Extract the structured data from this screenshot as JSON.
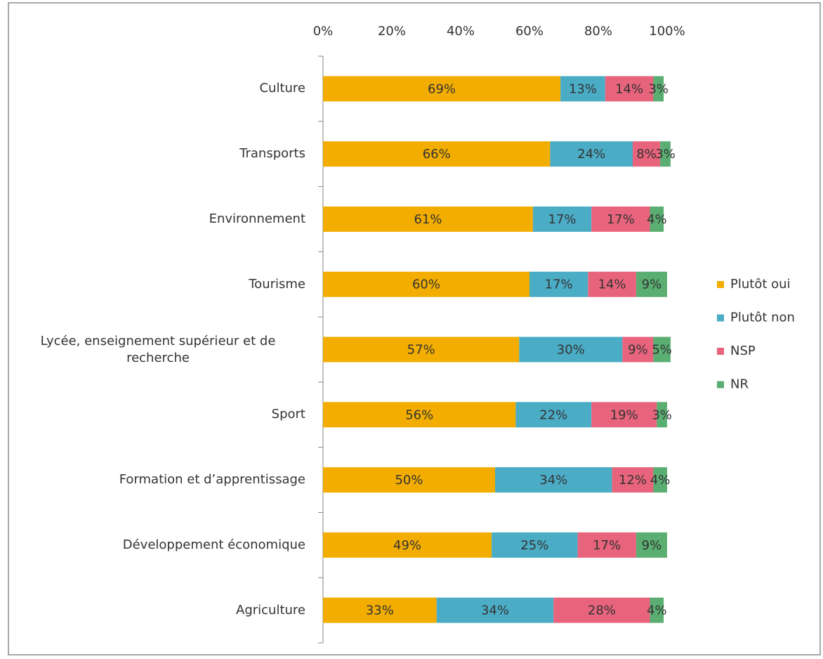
{
  "chart_data": {
    "type": "bar",
    "orientation": "horizontal",
    "stacked": true,
    "categories": [
      "Culture",
      "Transports",
      "Environnement",
      "Tourisme",
      "Lycée, enseignement supérieur et de recherche",
      "Sport",
      "Formation et d’apprentissage",
      "Développement économique",
      "Agriculture"
    ],
    "series": [
      {
        "name": "Plutôt oui",
        "color": "#f2ad00",
        "values": [
          69,
          66,
          61,
          60,
          57,
          56,
          50,
          49,
          33
        ],
        "value_labels": [
          "69%",
          "66%",
          "61%",
          "60%",
          "57%",
          "56%",
          "50%",
          "49%",
          "33%"
        ]
      },
      {
        "name": "Plutôt non",
        "color": "#4bacc6",
        "values": [
          13,
          24,
          17,
          17,
          30,
          22,
          34,
          25,
          34
        ],
        "value_labels": [
          "13%",
          "24%",
          "17%",
          "17%",
          "30%",
          "22%",
          "34%",
          "25%",
          "34%"
        ]
      },
      {
        "name": "NSP",
        "color": "#e8647c",
        "values": [
          14,
          8,
          17,
          14,
          9,
          19,
          12,
          17,
          28
        ],
        "value_labels": [
          "14%",
          "8%",
          "17%",
          "14%",
          "9%",
          "19%",
          "12%",
          "17%",
          "28%"
        ]
      },
      {
        "name": "NR",
        "color": "#5aae72",
        "values": [
          3,
          3,
          4,
          9,
          5,
          3,
          4,
          9,
          4
        ],
        "value_labels": [
          "3%",
          "3%",
          "4%",
          "9%",
          "5%",
          "3%",
          "4%",
          "9%",
          "4%"
        ]
      }
    ],
    "xlim": [
      0,
      100
    ],
    "xticks": [
      {
        "value": 0,
        "label": "0%"
      },
      {
        "value": 20,
        "label": "20%"
      },
      {
        "value": 40,
        "label": "40%"
      },
      {
        "value": 60,
        "label": "60%"
      },
      {
        "value": 80,
        "label": "80%"
      },
      {
        "value": 100,
        "label": "100%"
      }
    ],
    "grid": false,
    "legend": "right"
  }
}
